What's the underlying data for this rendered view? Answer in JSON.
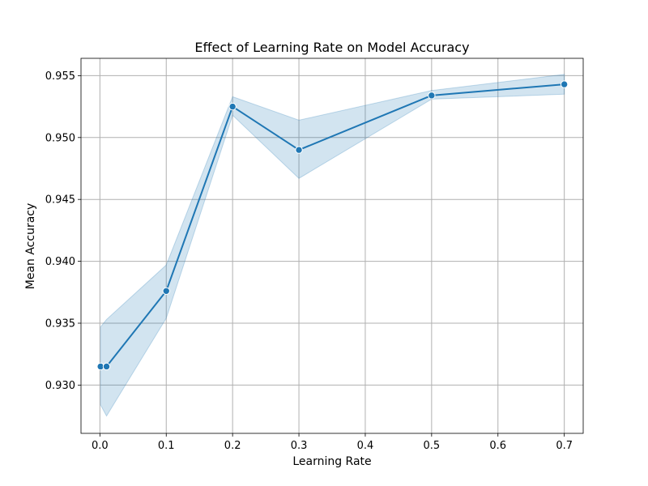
{
  "chart_data": {
    "type": "line",
    "title": "Effect of Learning Rate on Model Accuracy",
    "xlabel": "Learning Rate",
    "ylabel": "Mean Accuracy",
    "xlim": [
      -0.0285,
      0.7285
    ],
    "ylim": [
      0.9261,
      0.9564
    ],
    "xticks": [
      0.0,
      0.1,
      0.2,
      0.3,
      0.4,
      0.5,
      0.6,
      0.7
    ],
    "xtick_labels": [
      "0.0",
      "0.1",
      "0.2",
      "0.3",
      "0.4",
      "0.5",
      "0.6",
      "0.7"
    ],
    "yticks": [
      0.93,
      0.935,
      0.94,
      0.945,
      0.95,
      0.955
    ],
    "ytick_labels": [
      "0.930",
      "0.935",
      "0.940",
      "0.945",
      "0.950",
      "0.955"
    ],
    "grid": true,
    "series": [
      {
        "color": "#1f77b4",
        "band_color": "#1f77b4",
        "x": [
          0.001,
          0.01,
          0.1,
          0.2,
          0.3,
          0.5,
          0.7
        ],
        "y": [
          0.9315,
          0.9315,
          0.9376,
          0.9525,
          0.949,
          0.9534,
          0.9543
        ],
        "ci_low": [
          0.9284,
          0.9275,
          0.9354,
          0.9518,
          0.9467,
          0.9531,
          0.9535
        ],
        "ci_high": [
          0.9347,
          0.9353,
          0.9397,
          0.9533,
          0.9514,
          0.9538,
          0.9551
        ]
      }
    ]
  }
}
